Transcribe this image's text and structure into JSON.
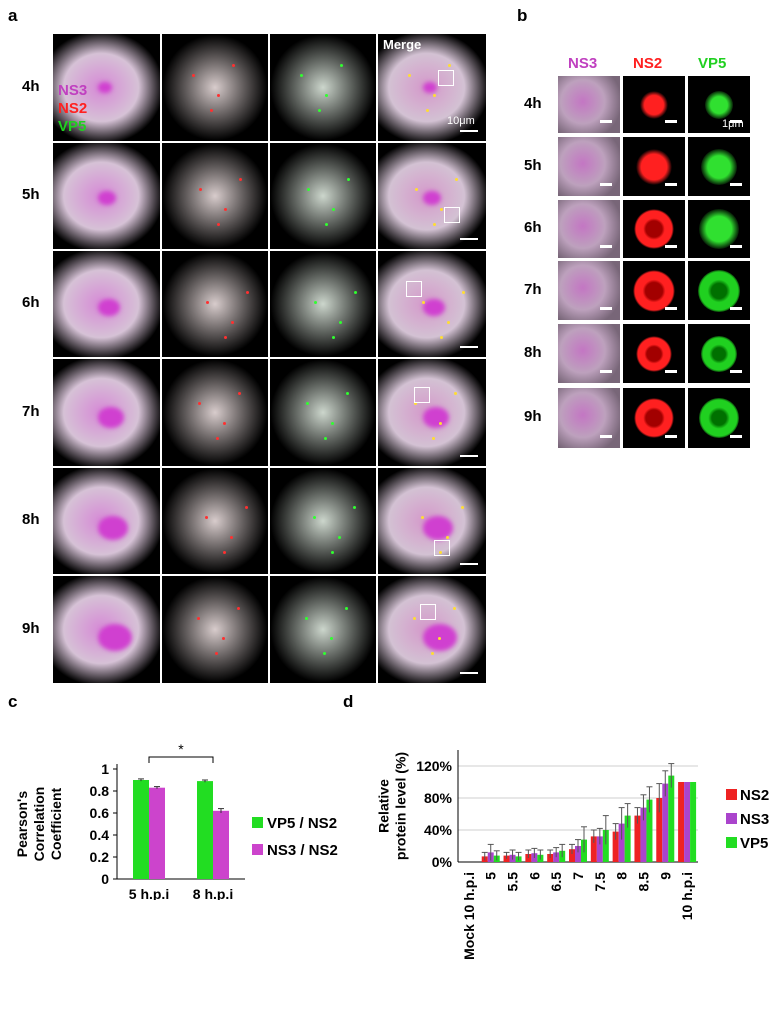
{
  "panel_a": {
    "label": "a",
    "legend": [
      {
        "text": "NS3",
        "color": "#c040c0"
      },
      {
        "text": "NS2",
        "color": "#ff2020"
      },
      {
        "text": "VP5",
        "color": "#20d020"
      }
    ],
    "merge_label": "Merge",
    "scale_label": "10μm",
    "rows": [
      "4h",
      "5h",
      "6h",
      "7h",
      "8h",
      "9h"
    ]
  },
  "panel_b": {
    "label": "b",
    "columns": [
      {
        "text": "NS3",
        "color": "#c040c0"
      },
      {
        "text": "NS2",
        "color": "#ff2020"
      },
      {
        "text": "VP5",
        "color": "#20d020"
      }
    ],
    "scale_label": "1μm",
    "rows": [
      "4h",
      "5h",
      "6h",
      "7h",
      "8h",
      "9h"
    ]
  },
  "chart_data": [
    {
      "type": "bar",
      "panel": "c",
      "categories": [
        "5 h.p.i",
        "8 h.p.i"
      ],
      "ylabel": "Pearson's Correlation Coefficient",
      "ylabel_lines": [
        "Pearson's",
        "Correlation",
        "Coefficient"
      ],
      "ylim": [
        0,
        1
      ],
      "yticks": [
        "0",
        "0.2",
        "0.4",
        "0.6",
        "0.8",
        "1"
      ],
      "series": [
        {
          "name": "VP5 / NS2",
          "color": "#22dd22",
          "values": [
            0.9,
            0.89
          ],
          "errors": [
            0.01,
            0.01
          ]
        },
        {
          "name": "NS3 / NS2",
          "color": "#cc44cc",
          "values": [
            0.83,
            0.62
          ],
          "errors": [
            0.01,
            0.02
          ]
        }
      ],
      "significance": "*",
      "legend_position": "right"
    },
    {
      "type": "bar",
      "panel": "d",
      "categories": [
        "Mock 10 h.p.i",
        "5",
        "5.5",
        "6",
        "6.5",
        "7",
        "7.5",
        "8",
        "8.5",
        "9",
        "10 h.p.i"
      ],
      "ylabel": "Relative protein level (%)",
      "ylabel_lines": [
        "Relative",
        "protein level (%)"
      ],
      "ylim": [
        0,
        140
      ],
      "yticks": [
        "0%",
        "40%",
        "80%",
        "120%"
      ],
      "grid": true,
      "series": [
        {
          "name": "NS2",
          "color": "#ee2222",
          "values": [
            0,
            7,
            8,
            10,
            10,
            16,
            32,
            38,
            58,
            80,
            100
          ],
          "errors": [
            0,
            5,
            4,
            5,
            5,
            6,
            8,
            10,
            10,
            18,
            0
          ]
        },
        {
          "name": "NS3",
          "color": "#aa44cc",
          "values": [
            0,
            12,
            9,
            11,
            12,
            20,
            32,
            48,
            68,
            98,
            100
          ],
          "errors": [
            0,
            10,
            6,
            6,
            6,
            8,
            10,
            20,
            16,
            16,
            0
          ]
        },
        {
          "name": "VP5",
          "color": "#22dd22",
          "values": [
            0,
            8,
            7,
            9,
            14,
            28,
            40,
            58,
            78,
            108,
            100
          ],
          "errors": [
            0,
            6,
            5,
            6,
            8,
            16,
            18,
            15,
            16,
            15,
            0
          ]
        }
      ],
      "legend_position": "right"
    }
  ]
}
